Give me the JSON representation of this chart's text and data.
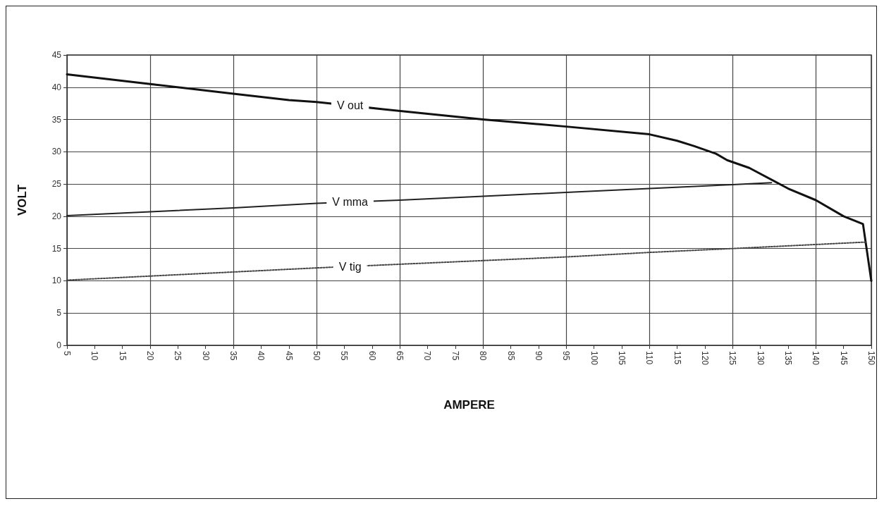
{
  "chart_data": {
    "type": "line",
    "xlabel": "AMPERE",
    "ylabel": "VOLT",
    "xlim": [
      5,
      150
    ],
    "xticks": [
      5,
      10,
      15,
      20,
      25,
      30,
      35,
      40,
      45,
      50,
      55,
      60,
      65,
      70,
      75,
      80,
      85,
      90,
      95,
      100,
      105,
      110,
      115,
      120,
      125,
      130,
      135,
      140,
      145,
      150
    ],
    "ylim": [
      0,
      45
    ],
    "yticks": [
      0,
      5,
      10,
      15,
      20,
      25,
      30,
      35,
      40,
      45
    ],
    "grid": true,
    "legend": false,
    "marker": "none",
    "series": [
      {
        "name": "V out",
        "color": "#111111",
        "line_style": "solid",
        "x": [
          5,
          20,
          35,
          45,
          50,
          62,
          80,
          95,
          110,
          115,
          118,
          122,
          124,
          128,
          135,
          140,
          145,
          148.5,
          150
        ],
        "values": [
          42,
          40.5,
          39,
          38,
          37.7,
          36.6,
          35,
          33.9,
          32.7,
          31.7,
          30.9,
          29.7,
          28.7,
          27.5,
          24.3,
          22.5,
          20,
          18.8,
          10
        ]
      },
      {
        "name": "V mma",
        "color": "#222222",
        "line_style": "solid",
        "x": [
          5,
          20,
          35,
          50,
          65,
          80,
          95,
          110,
          125,
          132
        ],
        "values": [
          20.1,
          20.7,
          21.3,
          22,
          22.5,
          23.1,
          23.7,
          24.3,
          24.9,
          25.2
        ]
      },
      {
        "name": "V tig",
        "color": "#444444",
        "line_style": "dotted",
        "x": [
          5,
          50,
          95,
          110,
          125,
          149
        ],
        "values": [
          10.1,
          12,
          13.7,
          14.4,
          15,
          16
        ]
      }
    ]
  }
}
